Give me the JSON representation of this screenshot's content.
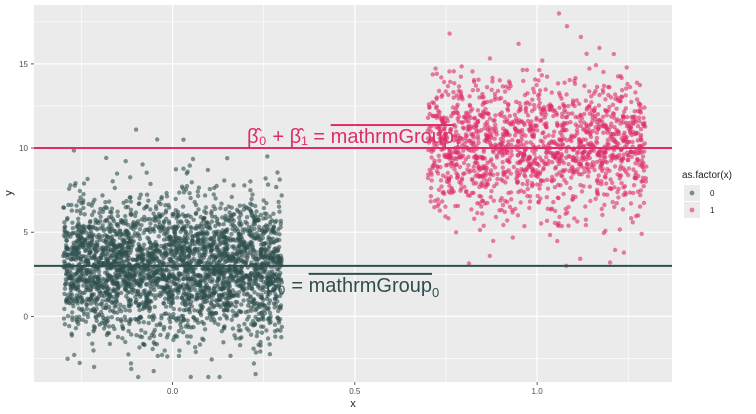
{
  "chart_data": {
    "type": "scatter",
    "xlabel": "x",
    "ylabel": "y",
    "xlim": [
      -0.38,
      1.37
    ],
    "ylim": [
      -3.9,
      18.5
    ],
    "xticks": [
      0.0,
      0.5,
      1.0
    ],
    "xtick_labels": [
      "0.0",
      "0.5",
      "1.0"
    ],
    "yticks": [
      0,
      5,
      10,
      15
    ],
    "ytick_labels": [
      "0",
      "5",
      "10",
      "15"
    ],
    "grid": true,
    "legend": {
      "title": "as.factor(x)",
      "placement": "right",
      "entries": [
        "0",
        "1"
      ]
    },
    "series": [
      {
        "name": "0",
        "color": "#2f4f4f",
        "jitter_x_center": 0.0,
        "jitter_x_range": [
          -0.3,
          0.3
        ],
        "mean": 3.0,
        "sd": 2.0,
        "n": 3000,
        "outliers": [
          [
            -0.1,
            11.1
          ],
          [
            0.03,
            10.5
          ],
          [
            0.15,
            9.4
          ],
          [
            0.05,
            -3.6
          ]
        ]
      },
      {
        "name": "1",
        "color": "#de2d6a",
        "jitter_x_center": 1.0,
        "jitter_x_range": [
          0.7,
          1.3
        ],
        "mean": 10.0,
        "sd": 2.0,
        "n": 1500,
        "outliers": [
          [
            1.06,
            18.0
          ],
          [
            0.76,
            16.8
          ],
          [
            1.12,
            16.6
          ],
          [
            1.08,
            3.0
          ],
          [
            1.2,
            3.2
          ]
        ]
      }
    ],
    "hlines": [
      {
        "y": 3.0,
        "color": "#2f4f4f",
        "label_main": "β̂₀ = ",
        "label_over": "mathrmGroup",
        "label_sub": "0"
      },
      {
        "y": 10.0,
        "color": "#de2d6a",
        "label_main": "β̂₀ + β̂₁ = ",
        "label_over": "mathrmGroup",
        "label_sub": "1"
      }
    ]
  }
}
